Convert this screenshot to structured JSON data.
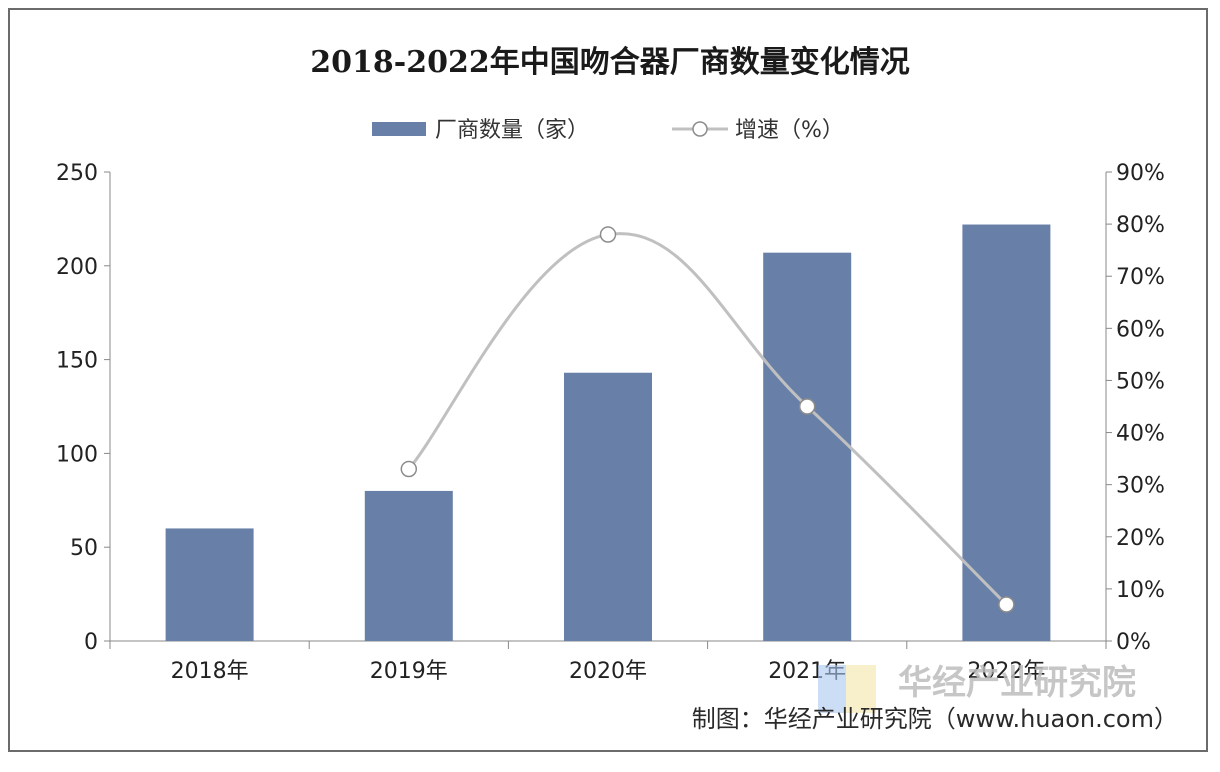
{
  "chart_data": {
    "type": "bar",
    "title": "2018-2022年中国吻合器厂商数量变化情况",
    "categories": [
      "2018年",
      "2019年",
      "2020年",
      "2021年",
      "2022年"
    ],
    "series": [
      {
        "name": "厂商数量（家）",
        "type": "bar",
        "axis": "left",
        "values": [
          60,
          80,
          143,
          207,
          222
        ]
      },
      {
        "name": "增速（%）",
        "type": "line",
        "axis": "right",
        "values": [
          null,
          33,
          78,
          45,
          7
        ]
      }
    ],
    "y_left": {
      "ticks": [
        "0",
        "50",
        "100",
        "150",
        "200",
        "250"
      ],
      "lim": [
        0,
        250
      ]
    },
    "y_right": {
      "ticks": [
        "0%",
        "10%",
        "20%",
        "30%",
        "40%",
        "50%",
        "60%",
        "70%",
        "80%",
        "90%"
      ],
      "lim": [
        0,
        90
      ]
    },
    "legend_position": "top-center",
    "grid": false,
    "colors": {
      "bar": "#6880a8",
      "line": "#c0c0c0",
      "marker_fill": "#ffffff",
      "marker_stroke": "#8c8c8c"
    }
  },
  "watermark": {
    "text": "华经产业研究院"
  },
  "source": {
    "text": "制图：华经产业研究院（www.huaon.com）"
  }
}
